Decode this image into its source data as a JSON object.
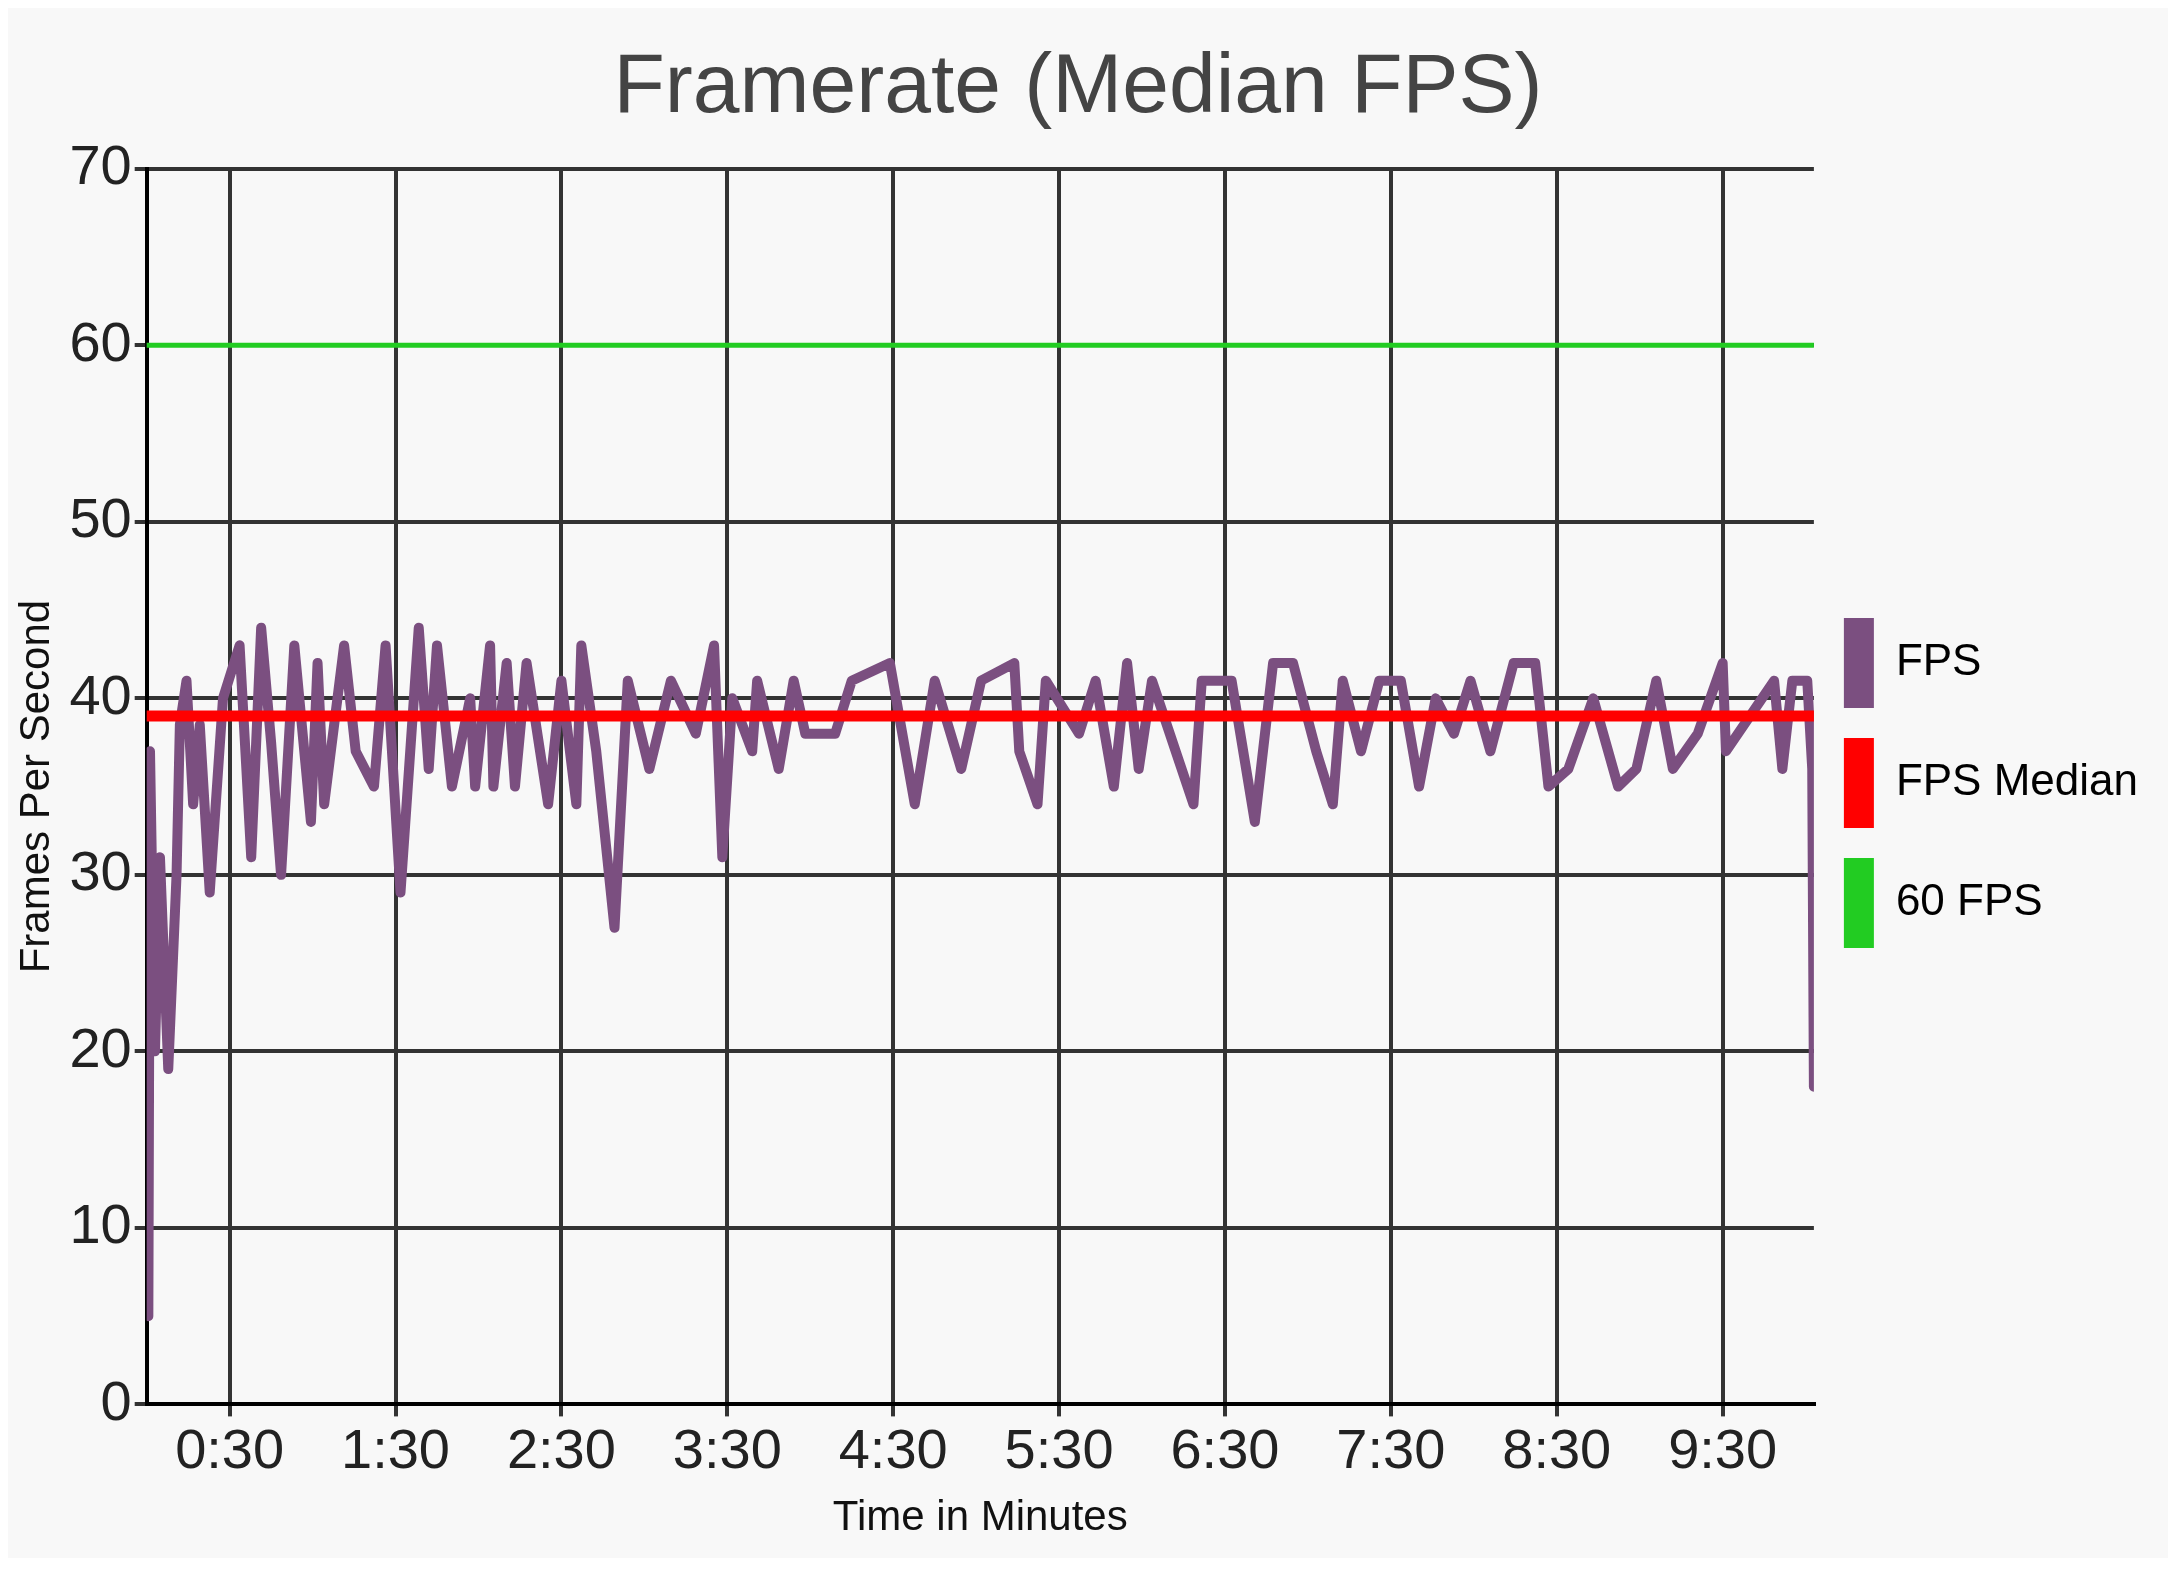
{
  "chart_data": {
    "type": "line",
    "title": "Framerate (Median FPS)",
    "xlabel": "Time in Minutes",
    "ylabel": "Frames Per Second",
    "xlim": [
      0,
      10.05
    ],
    "xticks": [
      {
        "value": 0.5,
        "label": "0:30"
      },
      {
        "value": 1.5,
        "label": "1:30"
      },
      {
        "value": 2.5,
        "label": "2:30"
      },
      {
        "value": 3.5,
        "label": "3:30"
      },
      {
        "value": 4.5,
        "label": "4:30"
      },
      {
        "value": 5.5,
        "label": "5:30"
      },
      {
        "value": 6.5,
        "label": "6:30"
      },
      {
        "value": 7.5,
        "label": "7:30"
      },
      {
        "value": 8.5,
        "label": "8:30"
      },
      {
        "value": 9.5,
        "label": "9:30"
      }
    ],
    "ylim": [
      0,
      70
    ],
    "yticks": [
      0,
      10,
      20,
      30,
      40,
      50,
      60,
      70
    ],
    "grid": true,
    "legend": "right",
    "marker": "none",
    "line_style": "solid",
    "series": [
      {
        "name": "FPS",
        "color": "#7b4f80",
        "x": [
          0.01,
          0.02,
          0.05,
          0.08,
          0.13,
          0.18,
          0.2,
          0.24,
          0.28,
          0.32,
          0.38,
          0.46,
          0.56,
          0.63,
          0.69,
          0.75,
          0.81,
          0.89,
          0.99,
          1.03,
          1.07,
          1.19,
          1.26,
          1.37,
          1.44,
          1.53,
          1.64,
          1.7,
          1.75,
          1.84,
          1.95,
          1.98,
          2.07,
          2.09,
          2.17,
          2.22,
          2.29,
          2.42,
          2.5,
          2.59,
          2.62,
          2.71,
          2.82,
          2.9,
          3.03,
          3.16,
          3.31,
          3.42,
          3.47,
          3.53,
          3.65,
          3.68,
          3.81,
          3.9,
          3.97,
          4.15,
          4.25,
          4.48,
          4.63,
          4.75,
          4.91,
          5.03,
          5.23,
          5.26,
          5.37,
          5.42,
          5.62,
          5.72,
          5.83,
          5.91,
          5.98,
          6.06,
          6.31,
          6.36,
          6.54,
          6.68,
          6.79,
          6.91,
          7.05,
          7.15,
          7.21,
          7.32,
          7.43,
          7.56,
          7.67,
          7.77,
          7.88,
          7.98,
          8.1,
          8.24,
          8.37,
          8.45,
          8.57,
          8.72,
          8.87,
          8.98,
          9.1,
          9.2,
          9.35,
          9.5,
          9.52,
          9.81,
          9.86,
          9.92,
          10.01,
          10.04,
          10.05
        ],
        "values": [
          5,
          37,
          20,
          31,
          19,
          30,
          38.5,
          41,
          34,
          38.5,
          29,
          40,
          43,
          31,
          44,
          37.5,
          30,
          43,
          33,
          42,
          34,
          43,
          37,
          35,
          43,
          29,
          44,
          36,
          43,
          35,
          40,
          35,
          43,
          35,
          42,
          35,
          42,
          34,
          41,
          34,
          43,
          37,
          27,
          41,
          36,
          41,
          38,
          43,
          31,
          40,
          37,
          41,
          36,
          41,
          38,
          38,
          41,
          42,
          34,
          41,
          36,
          41,
          42,
          37,
          34,
          41,
          38,
          41,
          35,
          42,
          36,
          41,
          34,
          41,
          41,
          33,
          42,
          42,
          37,
          34,
          41,
          37,
          41,
          41,
          35,
          40,
          38,
          41,
          37,
          42,
          42,
          35,
          36,
          40,
          35,
          36,
          41,
          36,
          38,
          42,
          37,
          41,
          36,
          41,
          41,
          36,
          18
        ]
      },
      {
        "name": "FPS Median",
        "color": "#ff0000",
        "x": [
          0,
          10.05
        ],
        "values": [
          39,
          39
        ]
      },
      {
        "name": "60 FPS",
        "color": "#22cc22",
        "x": [
          0,
          10.05
        ],
        "values": [
          60,
          60
        ]
      }
    ]
  }
}
